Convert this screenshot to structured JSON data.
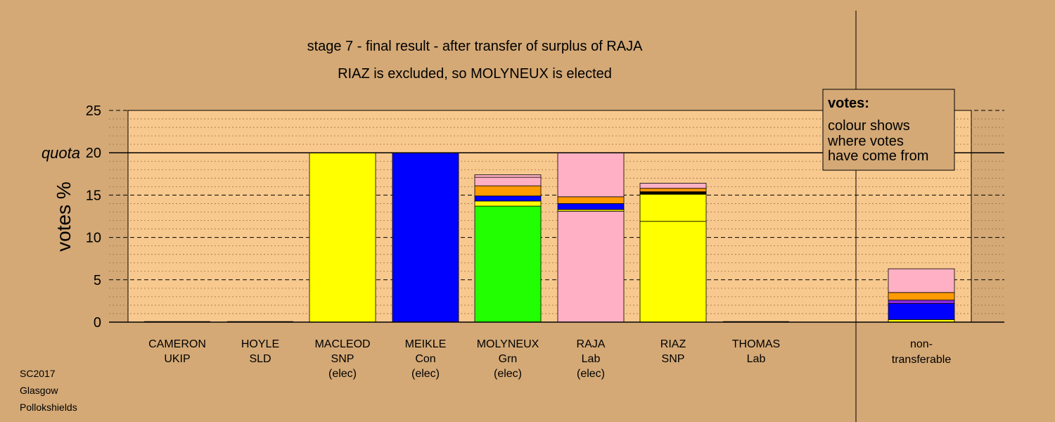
{
  "chart_data": {
    "type": "bar",
    "stacked": true,
    "title": "stage 7 - final result - after transfer of surplus of RAJA",
    "subtitle": "RIAZ is excluded, so MOLYNEUX is elected",
    "ylabel": "votes %",
    "ylim": [
      0,
      25
    ],
    "yticks": [
      0,
      5,
      10,
      15,
      20,
      25
    ],
    "quota": {
      "label": "quota",
      "value": 20
    },
    "grid": true,
    "legend": {
      "position": "top-right",
      "title": "votes:",
      "lines": [
        "colour shows",
        "where votes",
        "have come from"
      ]
    },
    "colors": {
      "yellow": "#ffff00",
      "blue": "#0000ff",
      "green": "#22ff00",
      "pink": "#ffb0c4",
      "orange": "#ff9a00",
      "purple": "#8a2be2",
      "black": "#000000",
      "background": "#d4a976",
      "plot_background": "#f8c98e"
    },
    "categories": [
      {
        "lines": [
          "CAMERON",
          "UKIP"
        ],
        "segments": []
      },
      {
        "lines": [
          "HOYLE",
          "SLD"
        ],
        "segments": []
      },
      {
        "lines": [
          "MACLEOD",
          "SNP",
          "(elec)"
        ],
        "segments": [
          {
            "value": 20.0,
            "color": "#ffff00"
          }
        ]
      },
      {
        "lines": [
          "MEIKLE",
          "Con",
          "(elec)"
        ],
        "segments": [
          {
            "value": 20.0,
            "color": "#0000ff"
          }
        ]
      },
      {
        "lines": [
          "MOLYNEUX",
          "Grn",
          "(elec)"
        ],
        "segments": [
          {
            "value": 13.7,
            "color": "#22ff00"
          },
          {
            "value": 0.6,
            "color": "#ffff00"
          },
          {
            "value": 0.6,
            "color": "#0000ff"
          },
          {
            "value": 1.2,
            "color": "#ff9a00"
          },
          {
            "value": 1.0,
            "color": "#ffb0c4"
          },
          {
            "value": 0.3,
            "color": "#ffb0c4"
          }
        ]
      },
      {
        "lines": [
          "RAJA",
          "Lab",
          "(elec)"
        ],
        "segments": [
          {
            "value": 13.1,
            "color": "#ffb0c4"
          },
          {
            "value": 0.2,
            "color": "#ffff00"
          },
          {
            "value": 0.7,
            "color": "#0000ff"
          },
          {
            "value": 0.8,
            "color": "#ff9a00"
          },
          {
            "value": 5.2,
            "color": "#ffb0c4"
          }
        ]
      },
      {
        "lines": [
          "RIAZ",
          "SNP"
        ],
        "segments": [
          {
            "value": 11.9,
            "color": "#ffff00"
          },
          {
            "value": 3.2,
            "color": "#ffff00"
          },
          {
            "value": 0.3,
            "color": "#000000"
          },
          {
            "value": 0.4,
            "color": "#ff9a00"
          },
          {
            "value": 0.6,
            "color": "#ffb0c4"
          }
        ]
      },
      {
        "lines": [
          "THOMAS",
          "Lab"
        ],
        "segments": []
      }
    ],
    "nontransferable": {
      "lines": [
        "non-",
        "transferable"
      ],
      "segments": [
        {
          "value": 0.3,
          "color": "#ffff00"
        },
        {
          "value": 1.9,
          "color": "#0000ff"
        },
        {
          "value": 0.4,
          "color": "#8a2be2"
        },
        {
          "value": 0.9,
          "color": "#ff9a00"
        },
        {
          "value": 2.8,
          "color": "#ffb0c4"
        }
      ]
    }
  },
  "footer": [
    "SC2017",
    "Glasgow",
    "Pollokshields"
  ]
}
